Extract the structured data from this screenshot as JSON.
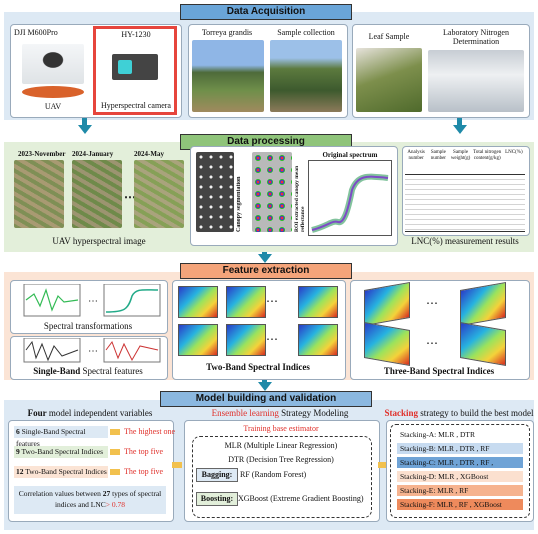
{
  "acquisition": {
    "title": "Data Acquisition",
    "uav": {
      "model": "DJI M600Pro",
      "label": "UAV"
    },
    "camera": {
      "model": "HY-1230",
      "label": "Hyperspectral camera"
    },
    "field": {
      "species": "Torreya grandis",
      "sampling": "Sample collection"
    },
    "lab": {
      "sample": "Leaf Sample",
      "method": "Laboratory Nitrogen Determination"
    }
  },
  "processing": {
    "title": "Data processing",
    "dates": [
      "2023-November",
      "2024-January",
      "2024-May"
    ],
    "image_caption": "UAV hyperspectral image",
    "steps": [
      "Canopy segmentation",
      "ROI extracted canopy mean reflectance"
    ],
    "spectrum_title": "Original spectrum",
    "table": {
      "headers": [
        "Analysis number",
        "Sample number",
        "Sample weight(g)",
        "Total nitrogen content(g/kg)",
        "LNC(%)"
      ]
    },
    "table_caption": "LNC(%) measurement results"
  },
  "features": {
    "title": "Feature extraction",
    "transform_caption": "Spectral transformations",
    "single_band": {
      "bold": "Single-Band",
      "rest": " Spectral features"
    },
    "two_band": "Two-Band Spectral Indices",
    "three_band": "Three-Band Spectral Indices"
  },
  "model": {
    "title": "Model building and validation",
    "variables": {
      "heading": {
        "bold": "Four",
        "rest": " model independent variables"
      },
      "rows": [
        {
          "count": "6",
          "name": " Single-Band Spectral features",
          "selection": "The highest one"
        },
        {
          "count": "9",
          "name": " Two-Band Spectral Indices",
          "selection": "The top five"
        },
        {
          "count": "12",
          "name": " Two-Band Spectral Indices",
          "selection": "The top five"
        }
      ],
      "note": {
        "before": "Correlation values between ",
        "count": "27",
        "after": " types of spectral indices and LNC",
        "threshold": "> 0.78"
      }
    },
    "ensemble": {
      "heading": {
        "highlight": "Ensemble learning",
        "rest": " Strategy Modeling"
      },
      "subheading": "Training base estimator",
      "estimators": [
        "MLR (Multiple Linear Regression)",
        "DTR (Decision Tree Regression)"
      ],
      "bagging": {
        "label": "Bagging:",
        "text": "RF (Random Forest)"
      },
      "boosting": {
        "label": "Boosting:",
        "text": "XGBoost (Extreme Gradient Boosting)"
      }
    },
    "stacking": {
      "heading": {
        "highlight": "Stacking",
        "rest": " strategy to build the best model"
      },
      "models": [
        "Stacking-A: MLR , DTR",
        "Stacking-B: MLR , DTR , RF",
        "Stacking-C: MLR , DTR , RF , XGBoost",
        "Stacking-D: MLR , XGBoost",
        "Stacking-E: MLR , RF",
        "Stacking-F: MLR , RF , XGBoost"
      ]
    }
  }
}
